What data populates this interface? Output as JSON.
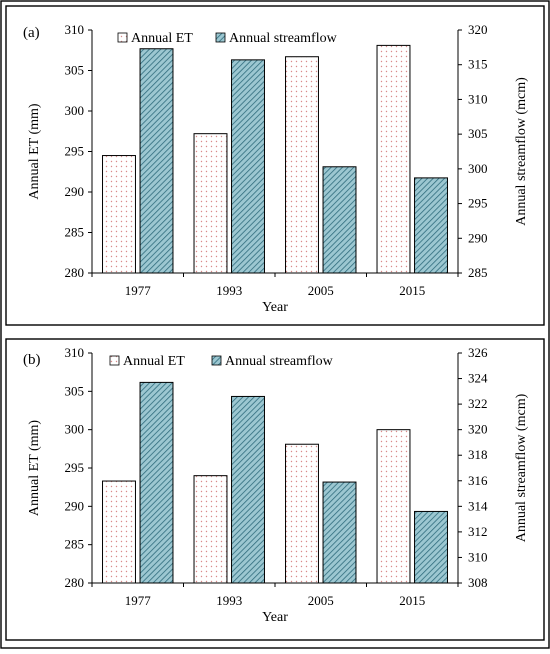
{
  "chart_data": [
    {
      "type": "bar",
      "panel_label": "(a)",
      "categories": [
        "1977",
        "1993",
        "2005",
        "2015"
      ],
      "xlabel": "Year",
      "ylabel": "Annual ET (mm)",
      "y2label": "Annual streamflow (mcm)",
      "ylim": [
        280,
        310
      ],
      "yticks": [
        280,
        285,
        290,
        295,
        300,
        305,
        310
      ],
      "y2lim": [
        285,
        320
      ],
      "y2ticks": [
        285,
        290,
        295,
        300,
        305,
        310,
        315,
        320
      ],
      "legend_position": "top",
      "series": [
        {
          "name": "Annual ET",
          "axis": "left",
          "pattern": "dots",
          "color": "#e8a0a0",
          "values": [
            294.5,
            297.2,
            306.7,
            308.1
          ]
        },
        {
          "name": "Annual streamflow",
          "axis": "right",
          "pattern": "hatch",
          "color": "#5b9bab",
          "values": [
            317.3,
            315.7,
            300.3,
            298.7
          ]
        }
      ]
    },
    {
      "type": "bar",
      "panel_label": "(b)",
      "categories": [
        "1977",
        "1993",
        "2005",
        "2015"
      ],
      "xlabel": "Year",
      "ylabel": "Annual ET (mm)",
      "y2label": "Annual streamflow (mcm)",
      "ylim": [
        280,
        310
      ],
      "yticks": [
        280,
        285,
        290,
        295,
        300,
        305,
        310
      ],
      "y2lim": [
        308,
        326
      ],
      "y2ticks": [
        308,
        310,
        312,
        314,
        316,
        318,
        320,
        322,
        324,
        326
      ],
      "legend_position": "top",
      "series": [
        {
          "name": "Annual ET",
          "axis": "left",
          "pattern": "dots",
          "color": "#e8a0a0",
          "values": [
            293.3,
            294.0,
            298.1,
            300.0
          ]
        },
        {
          "name": "Annual streamflow",
          "axis": "right",
          "pattern": "hatch",
          "color": "#5b9bab",
          "values": [
            323.7,
            322.6,
            315.9,
            313.6
          ]
        }
      ]
    }
  ]
}
